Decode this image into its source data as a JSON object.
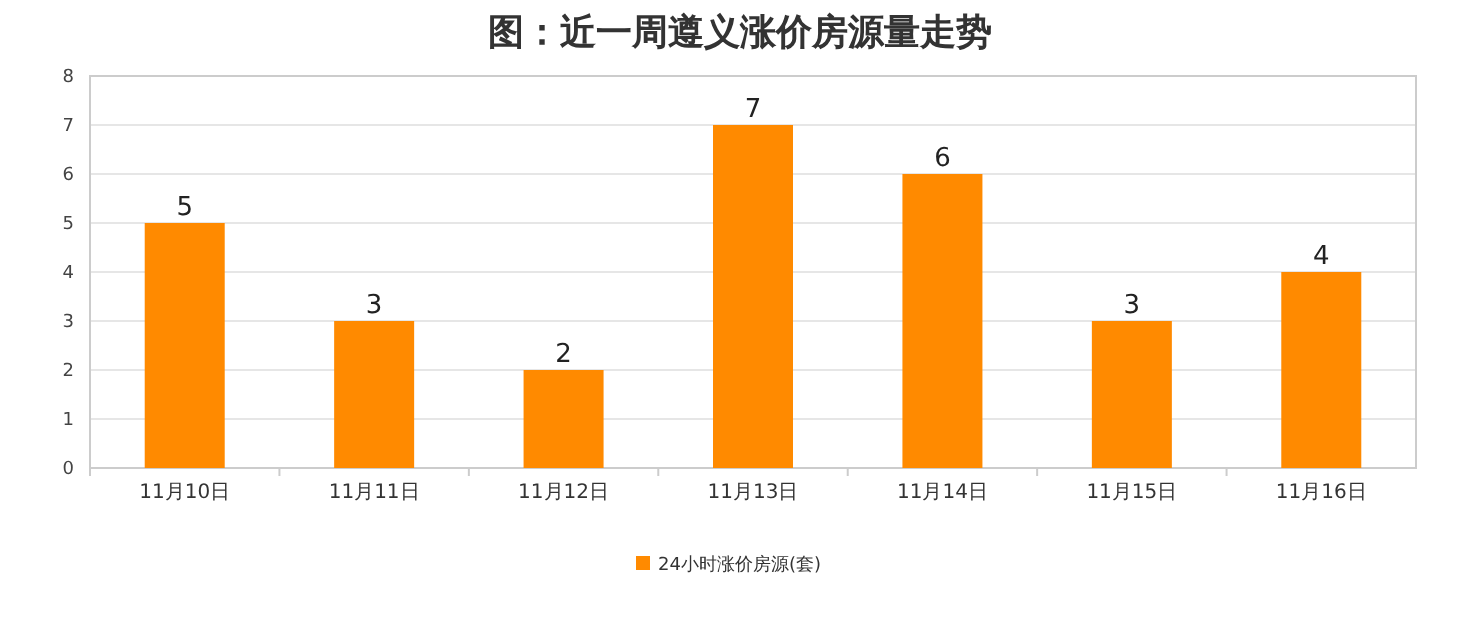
{
  "chart_data": {
    "type": "bar",
    "title": "图：近一周遵义涨价房源量走势",
    "categories": [
      "11月10日",
      "11月11日",
      "11月12日",
      "11月13日",
      "11月14日",
      "11月15日",
      "11月16日"
    ],
    "series": [
      {
        "name": "24小时涨价房源(套)",
        "color": "#ff8a00",
        "values": [
          5,
          3,
          2,
          7,
          6,
          3,
          4
        ]
      }
    ],
    "ylim": [
      0,
      8
    ],
    "yticks": [
      0,
      1,
      2,
      3,
      4,
      5,
      6,
      7,
      8
    ],
    "grid": "y",
    "legend": "bottom",
    "data_labels": true
  }
}
